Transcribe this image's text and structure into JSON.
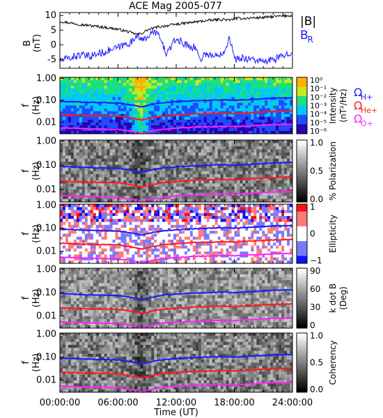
{
  "chart_data": {
    "title": "ACE Mag 2005-077",
    "type": "multi-panel",
    "xlabel": "Time (UT)",
    "xticks": [
      "00:00:00",
      "06:00:00",
      "12:00:00",
      "18:00:00",
      "24:00:00"
    ],
    "panels": [
      {
        "type": "line",
        "ylabel": "B",
        "yunit": "(nT)",
        "ylim": [
          -8,
          11
        ],
        "yticks": [
          "10",
          "5",
          "0",
          "-5"
        ],
        "legend": [
          {
            "text": "|B|",
            "color": "#000000"
          },
          {
            "text": "B",
            "sub": "R",
            "color": "#1a1aff"
          }
        ],
        "series": [
          {
            "name": "|B|",
            "color": "#000000",
            "x": [
              0,
              1,
              2,
              3,
              4,
              5,
              6,
              7,
              7.5,
              8,
              8.5,
              9,
              10,
              11,
              12,
              13,
              14,
              15,
              16,
              17,
              17.5,
              18,
              19,
              20,
              21,
              22,
              23,
              24
            ],
            "y": [
              8,
              7.5,
              7,
              6.6,
              6.2,
              5.8,
              5.3,
              4.5,
              4,
              3.5,
              4,
              5,
              6,
              6.5,
              7,
              7.4,
              7.8,
              8.2,
              8.5,
              8.7,
              8.3,
              9,
              9,
              9.2,
              9.3,
              9.6,
              9.8,
              10
            ]
          },
          {
            "name": "B_R",
            "color": "#1a1aff",
            "x": [
              0,
              1,
              2,
              3,
              4,
              5,
              6,
              7,
              7.5,
              8,
              8.5,
              9,
              10,
              11,
              12,
              13,
              14,
              14.5,
              15,
              16,
              17,
              17.5,
              18,
              19,
              20,
              21,
              22,
              23,
              24
            ],
            "y": [
              -5.5,
              -4.5,
              -3.5,
              -4,
              -3,
              -2,
              -1,
              0.5,
              1,
              4,
              1,
              3,
              4.5,
              -3,
              2,
              0,
              -1,
              -5,
              -3,
              -4,
              -2,
              3,
              -5,
              -4.5,
              -5,
              -6,
              -5,
              -4,
              -2
            ]
          }
        ]
      },
      {
        "type": "heatmap",
        "ylabel": "f",
        "yunit": "(Hz)",
        "yscale": "log",
        "ylim": [
          0.003,
          1.1
        ],
        "yticks": [
          "1.00",
          "0.10",
          "0.01"
        ],
        "colorbar": {
          "label": "Intensity",
          "unit": "(nT²/Hz)",
          "ticks": [
            "10⁰",
            "10⁻¹",
            "10⁻²",
            "10⁻³",
            "10⁻⁴",
            "10⁻⁵",
            "10⁻⁶"
          ]
        },
        "legend": [
          {
            "text": "Ω",
            "sub": "H+",
            "color": "#1a1aff"
          },
          {
            "text": "Ω",
            "sub": "He+",
            "color": "#ff1a1a"
          },
          {
            "text": "Ω",
            "sub": "O+",
            "color": "#ff22ff"
          }
        ]
      },
      {
        "type": "heatmap",
        "ylabel": "f",
        "yunit": "(Hz)",
        "yscale": "log",
        "yticks": [
          "1.00",
          "0.10",
          "0.01"
        ],
        "colorbar": {
          "label": "% Polarization",
          "unit": "",
          "ticks": [
            "1.0",
            "0.5",
            "0.0"
          ]
        }
      },
      {
        "type": "heatmap",
        "ylabel": "f",
        "yunit": "(Hz)",
        "yscale": "log",
        "yticks": [
          "1.00",
          "0.10",
          "0.01"
        ],
        "colorbar": {
          "label": "Ellipticity",
          "unit": "",
          "ticks": [
            "1",
            "0",
            "−1"
          ]
        }
      },
      {
        "type": "heatmap",
        "ylabel": "f",
        "yunit": "(Hz)",
        "yscale": "log",
        "yticks": [
          "1.00",
          "0.10",
          "0.01"
        ],
        "colorbar": {
          "label": "k dot B",
          "unit": "(Deg)",
          "ticks": [
            "90",
            "60",
            "30",
            "0"
          ]
        }
      },
      {
        "type": "heatmap",
        "ylabel": "f",
        "yunit": "(Hz)",
        "yscale": "log",
        "yticks": [
          "1.00",
          "0.10",
          "0.01"
        ],
        "colorbar": {
          "label": "Coherency",
          "unit": "",
          "ticks": [
            "1.0",
            "0.5",
            "0.0"
          ]
        }
      }
    ],
    "gyrofrequency_lines": [
      {
        "name": "ΩH+",
        "color": "#1a1aff",
        "x": [
          0,
          3,
          6,
          7.5,
          8.5,
          9.5,
          11,
          14,
          17,
          18,
          20,
          22,
          24
        ],
        "y": [
          0.09,
          0.08,
          0.075,
          0.06,
          0.05,
          0.065,
          0.08,
          0.095,
          0.105,
          0.1,
          0.11,
          0.125,
          0.13
        ]
      },
      {
        "name": "ΩHe+",
        "color": "#ff1a1a",
        "x": [
          0,
          3,
          6,
          7.5,
          8.5,
          9.5,
          11,
          14,
          17,
          18,
          20,
          22,
          24
        ],
        "y": [
          0.022,
          0.02,
          0.019,
          0.015,
          0.0125,
          0.016,
          0.02,
          0.024,
          0.026,
          0.025,
          0.028,
          0.031,
          0.033
        ]
      },
      {
        "name": "ΩO+",
        "color": "#ff22ff",
        "x": [
          0,
          3,
          6,
          7.5,
          8.5,
          9.5,
          11,
          14,
          17,
          18,
          20,
          22,
          24
        ],
        "y": [
          0.0056,
          0.005,
          0.0047,
          0.0038,
          0.0031,
          0.004,
          0.005,
          0.006,
          0.0065,
          0.0063,
          0.007,
          0.0078,
          0.0082
        ]
      }
    ]
  }
}
